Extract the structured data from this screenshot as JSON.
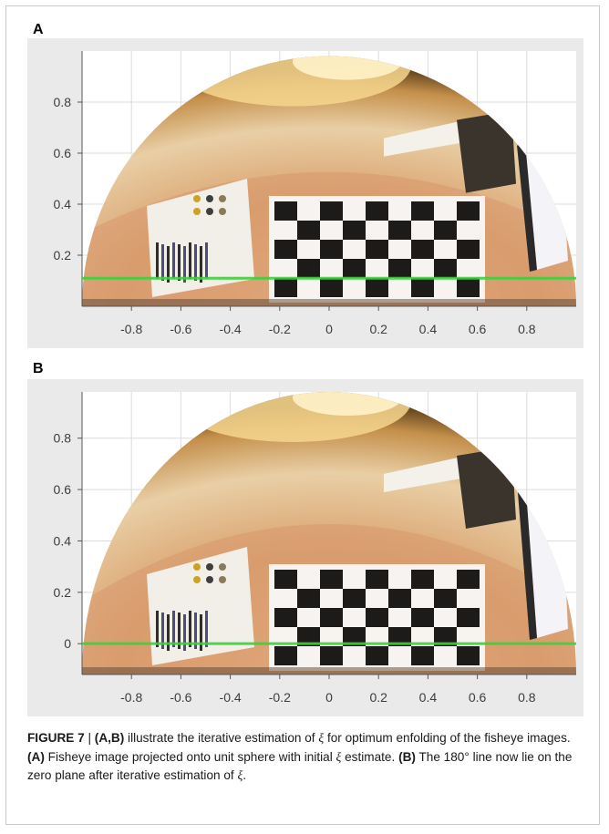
{
  "figure": {
    "panel_a_label": "A",
    "panel_b_label": "B",
    "caption": {
      "label": "FIGURE 7",
      "sep": " | ",
      "refs": "(A,B)",
      "text1": " illustrate the iterative estimation of ",
      "xi": "ξ",
      "text2": " for optimum enfolding of the fisheye images. ",
      "a_ref": "(A)",
      "a_text1": " Fisheye image projected onto unit sphere with initial ",
      "a_text2": " estimate. ",
      "b_ref": "(B)",
      "b_text": " The 180° line now lie on the zero plane after iterative estimation of ",
      "end": "."
    }
  },
  "chart_data": [
    {
      "type": "image",
      "panel": "A",
      "x_ticks": [
        "-0.8",
        "-0.6",
        "-0.4",
        "-0.2",
        "0",
        "0.2",
        "0.4",
        "0.6",
        "0.8"
      ],
      "y_ticks": [
        "0.2",
        "0.4",
        "0.6",
        "0.8"
      ],
      "xlim": [
        -1,
        1
      ],
      "ylim": [
        0.0,
        1.0
      ],
      "grid": true,
      "horizon_line_y": 0.11,
      "horizon_color": "#3cd23c"
    },
    {
      "type": "image",
      "panel": "B",
      "x_ticks": [
        "-0.8",
        "-0.6",
        "-0.4",
        "-0.2",
        "0",
        "0.2",
        "0.4",
        "0.6",
        "0.8"
      ],
      "y_ticks": [
        "0",
        "0.2",
        "0.4",
        "0.6",
        "0.8"
      ],
      "xlim": [
        -1,
        1
      ],
      "ylim": [
        -0.12,
        0.98
      ],
      "grid": true,
      "horizon_line_y": 0.0,
      "horizon_color": "#3cd23c"
    }
  ]
}
